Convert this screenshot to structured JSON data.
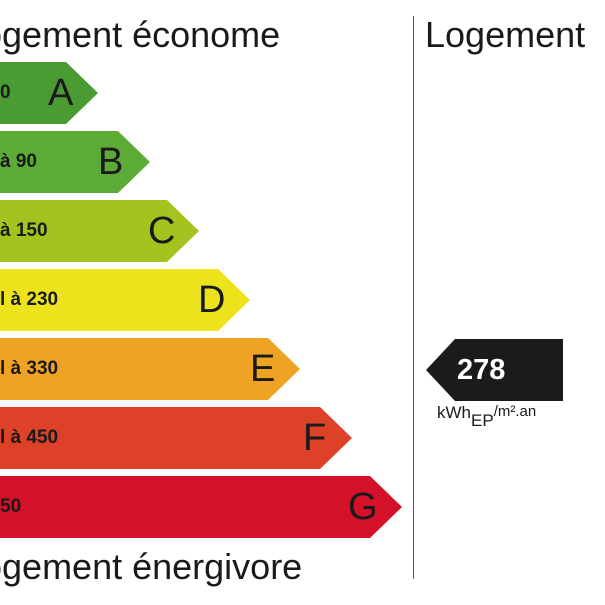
{
  "left_panel": {
    "top_heading": "ogement économe",
    "bottom_heading": "ogement énergivore"
  },
  "right_panel": {
    "heading": "Logement"
  },
  "bands": [
    {
      "range": "0",
      "letter": "A",
      "color": "#4a9b32"
    },
    {
      "range": "à 90",
      "letter": "B",
      "color": "#5cab37"
    },
    {
      "range": "à 150",
      "letter": "C",
      "color": "#a3c41f"
    },
    {
      "range": "l à 230",
      "letter": "D",
      "color": "#ece31d"
    },
    {
      "range": "l à 330",
      "letter": "E",
      "color": "#eea325"
    },
    {
      "range": "l à 450",
      "letter": "F",
      "color": "#dd4127"
    },
    {
      "range": "50",
      "letter": "G",
      "color": "#d3122a"
    }
  ],
  "indicator": {
    "value": "278",
    "color": "#1c1a1b",
    "unit_main": "kWh",
    "unit_sub": "EP",
    "unit_rest": "/m².an"
  }
}
